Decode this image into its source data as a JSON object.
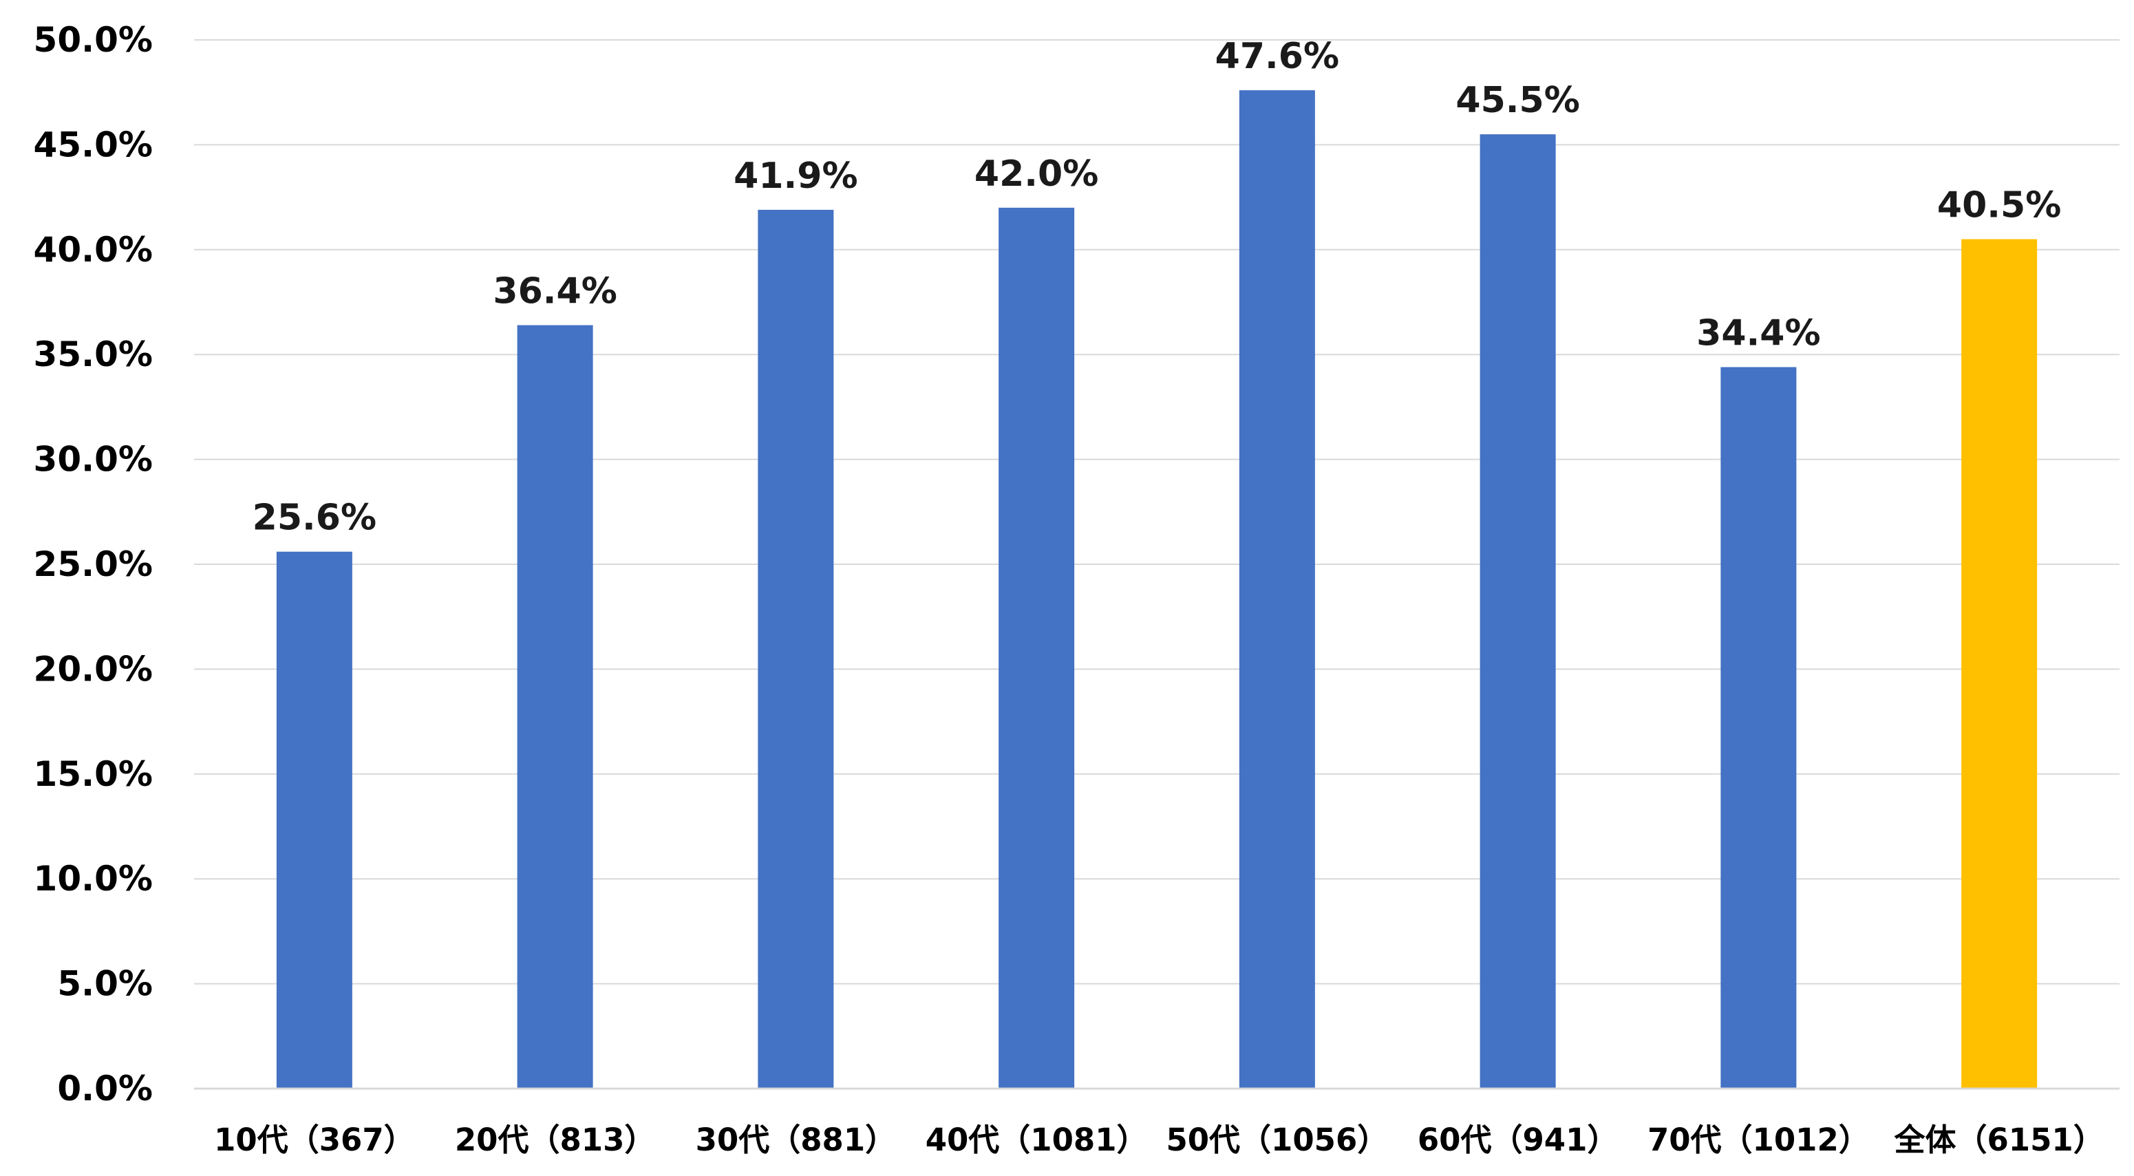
{
  "chart_data": {
    "type": "bar",
    "categories": [
      "10代（367）",
      "20代（813）",
      "30代（881）",
      "40代（1081）",
      "50代（1056）",
      "60代（941）",
      "70代（1012）",
      "全体（6151）"
    ],
    "values": [
      25.6,
      36.4,
      41.9,
      42.0,
      47.6,
      45.5,
      34.4,
      40.5
    ],
    "data_labels": [
      "25.6%",
      "36.4%",
      "41.9%",
      "42.0%",
      "47.6%",
      "45.5%",
      "34.4%",
      "40.5%"
    ],
    "bar_colors": [
      "#4472C4",
      "#4472C4",
      "#4472C4",
      "#4472C4",
      "#4472C4",
      "#4472C4",
      "#4472C4",
      "#FFC000"
    ],
    "y_ticks": [
      0,
      5,
      10,
      15,
      20,
      25,
      30,
      35,
      40,
      45,
      50
    ],
    "y_tick_labels": [
      "0.0%",
      "5.0%",
      "10.0%",
      "15.0%",
      "20.0%",
      "25.0%",
      "30.0%",
      "35.0%",
      "40.0%",
      "45.0%",
      "50.0%"
    ],
    "ylim": [
      0,
      50
    ],
    "grid": true,
    "legend": false,
    "gridline_color": "#D9D9D9",
    "axis_color": "#D9D9D9"
  }
}
